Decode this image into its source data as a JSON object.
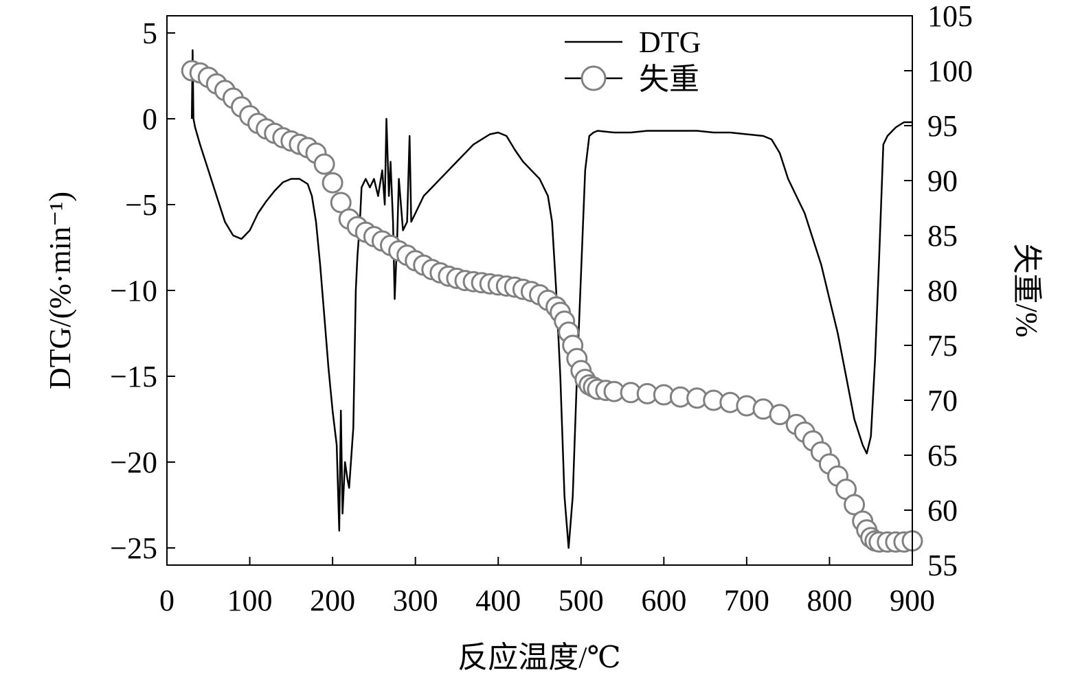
{
  "chart_data": {
    "type": "line",
    "xlabel": "反应温度/℃",
    "ylabel_left": "DTG/(%·min⁻¹)",
    "ylabel_right": "失重/%",
    "xlim": [
      0,
      900
    ],
    "ylim_left": [
      -26,
      6
    ],
    "ylim_right": [
      55,
      105
    ],
    "x_ticks": [
      0,
      100,
      200,
      300,
      400,
      500,
      600,
      700,
      800,
      900
    ],
    "y_left_ticks": [
      5,
      0,
      -5,
      -10,
      -15,
      -20,
      -25
    ],
    "y_left_tick_labels": [
      "5",
      "0",
      "−5",
      "−10",
      "−15",
      "−20",
      "−25"
    ],
    "y_right_ticks": [
      105,
      100,
      95,
      90,
      85,
      80,
      75,
      70,
      65,
      60,
      55
    ],
    "legend": {
      "position": "top-center",
      "entries": [
        "DTG",
        "失重"
      ]
    },
    "colors": {
      "dtg": "#000000",
      "loss": "#808080"
    },
    "series": [
      {
        "name": "DTG",
        "axis": "left",
        "style": "line",
        "x": [
          30,
          31,
          32,
          34,
          40,
          50,
          60,
          70,
          80,
          90,
          100,
          110,
          120,
          130,
          140,
          150,
          160,
          170,
          175,
          180,
          185,
          190,
          195,
          200,
          205,
          208,
          210,
          212,
          215,
          218,
          220,
          225,
          228,
          230,
          233,
          235,
          240,
          245,
          250,
          255,
          260,
          263,
          265,
          268,
          270,
          273,
          275,
          278,
          280,
          285,
          290,
          293,
          295,
          300,
          310,
          320,
          330,
          340,
          350,
          360,
          370,
          380,
          390,
          400,
          410,
          420,
          430,
          440,
          450,
          460,
          465,
          470,
          475,
          480,
          485,
          490,
          495,
          500,
          505,
          510,
          515,
          520,
          540,
          560,
          580,
          600,
          620,
          640,
          660,
          680,
          700,
          720,
          730,
          740,
          750,
          760,
          770,
          780,
          790,
          800,
          810,
          820,
          830,
          840,
          845,
          850,
          855,
          860,
          865,
          870,
          880,
          890,
          900
        ],
        "y": [
          0,
          4,
          0,
          -0.5,
          -1.5,
          -3,
          -4.5,
          -6,
          -6.8,
          -7,
          -6.5,
          -5.5,
          -4.8,
          -4.2,
          -3.7,
          -3.5,
          -3.5,
          -3.8,
          -4.5,
          -6,
          -8.5,
          -11.5,
          -14.5,
          -17,
          -19,
          -24,
          -17,
          -23,
          -20,
          -21,
          -21.5,
          -18,
          -10,
          -8,
          -6,
          -4,
          -3.5,
          -4,
          -3.5,
          -4.5,
          -3,
          -5,
          0,
          -4.5,
          -2.5,
          -6,
          -10.5,
          -7,
          -3.5,
          -6.5,
          -6,
          -1,
          -6,
          -5.5,
          -4.5,
          -4,
          -3.5,
          -3,
          -2.5,
          -2,
          -1.5,
          -1.2,
          -0.9,
          -0.8,
          -1,
          -1.8,
          -2.5,
          -3,
          -3.5,
          -4.5,
          -6,
          -10,
          -15,
          -22,
          -25,
          -22,
          -15,
          -9,
          -3,
          -1,
          -0.8,
          -0.7,
          -0.8,
          -0.8,
          -0.7,
          -0.7,
          -0.7,
          -0.7,
          -0.8,
          -0.8,
          -0.9,
          -1,
          -1.2,
          -2,
          -3.5,
          -4.5,
          -5.5,
          -7,
          -8.5,
          -10.5,
          -12.5,
          -15,
          -17.5,
          -19,
          -19.5,
          -18.5,
          -14,
          -8,
          -1.5,
          -1,
          -0.5,
          -0.2,
          -0.2
        ]
      },
      {
        "name": "失重",
        "axis": "right",
        "style": "markers",
        "x": [
          30,
          40,
          50,
          60,
          70,
          80,
          90,
          100,
          110,
          120,
          130,
          140,
          150,
          160,
          170,
          180,
          190,
          200,
          210,
          220,
          230,
          240,
          250,
          260,
          270,
          280,
          290,
          300,
          310,
          320,
          330,
          340,
          350,
          360,
          370,
          380,
          390,
          400,
          410,
          420,
          430,
          440,
          450,
          460,
          470,
          475,
          480,
          485,
          490,
          495,
          500,
          505,
          510,
          515,
          520,
          530,
          540,
          560,
          580,
          600,
          620,
          640,
          660,
          680,
          700,
          720,
          740,
          760,
          770,
          780,
          790,
          800,
          810,
          820,
          830,
          840,
          845,
          850,
          855,
          860,
          870,
          880,
          890,
          900
        ],
        "y": [
          100,
          99.8,
          99.4,
          98.8,
          98.2,
          97.5,
          96.7,
          95.9,
          95.2,
          94.7,
          94.3,
          93.9,
          93.6,
          93.3,
          93,
          92.5,
          91.5,
          89.8,
          88,
          86.5,
          85.8,
          85.3,
          84.9,
          84.5,
          84.1,
          83.6,
          83.2,
          82.7,
          82.3,
          81.9,
          81.6,
          81.3,
          81.1,
          80.9,
          80.8,
          80.7,
          80.6,
          80.5,
          80.4,
          80.3,
          80.1,
          79.9,
          79.6,
          79.1,
          78.5,
          78,
          77.2,
          76.2,
          75,
          73.8,
          72.7,
          71.9,
          71.4,
          71.2,
          71,
          70.9,
          70.8,
          70.7,
          70.6,
          70.5,
          70.3,
          70.2,
          70,
          69.8,
          69.5,
          69.2,
          68.7,
          67.8,
          67.1,
          66.3,
          65.3,
          64.2,
          63.1,
          61.9,
          60.5,
          59,
          58.2,
          57.5,
          57.2,
          57.1,
          57.1,
          57.1,
          57.1,
          57.2
        ]
      }
    ]
  }
}
